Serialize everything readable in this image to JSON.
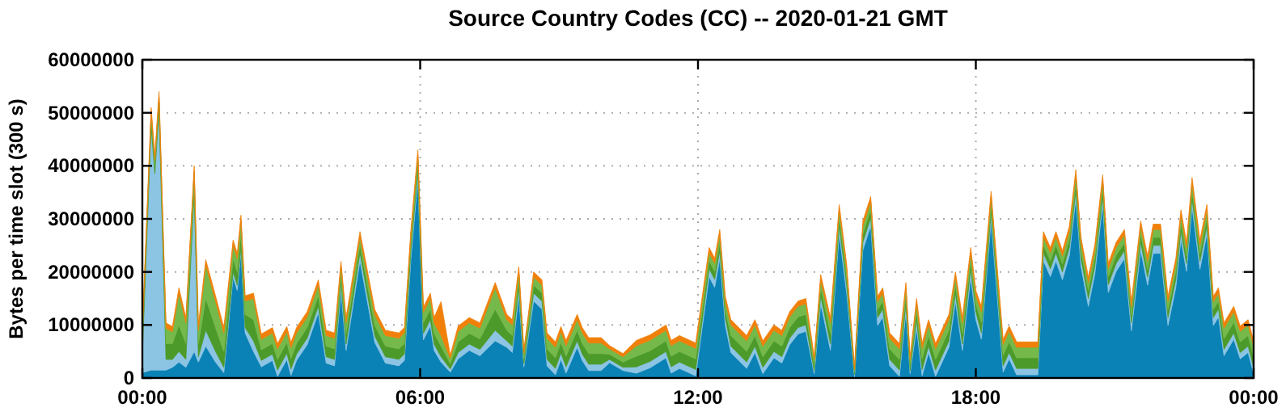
{
  "chart_data": {
    "type": "area",
    "stacked": true,
    "title": "Source Country Codes (CC) -- 2020-01-21 GMT",
    "ylabel": "Bytes per time slot (300 s)",
    "grid": true,
    "xlim": [
      0,
      24
    ],
    "xticks": [
      {
        "value": 0,
        "label": "00:00"
      },
      {
        "value": 6,
        "label": "06:00"
      },
      {
        "value": 12,
        "label": "12:00"
      },
      {
        "value": 18,
        "label": "18:00"
      },
      {
        "value": 24,
        "label": "00:00"
      }
    ],
    "ylim": [
      0,
      60000000
    ],
    "yticks": [
      0,
      10000000,
      20000000,
      30000000,
      40000000,
      50000000,
      60000000
    ],
    "x": [
      0,
      0.19,
      0.27,
      0.36,
      0.51,
      0.65,
      0.79,
      0.94,
      1.12,
      1.21,
      1.37,
      1.58,
      1.76,
      1.96,
      2.05,
      2.13,
      2.22,
      2.4,
      2.57,
      2.81,
      2.92,
      3.12,
      3.21,
      3.33,
      3.56,
      3.8,
      3.97,
      4.15,
      4.29,
      4.4,
      4.7,
      5.02,
      5.25,
      5.54,
      5.66,
      5.8,
      5.95,
      6.07,
      6.22,
      6.3,
      6.45,
      6.65,
      6.82,
      7.06,
      7.29,
      7.62,
      7.87,
      7.99,
      8.13,
      8.24,
      8.45,
      8.63,
      8.74,
      8.92,
      9.04,
      9.15,
      9.39,
      9.5,
      9.64,
      9.91,
      10.09,
      10.38,
      10.67,
      10.96,
      11.31,
      11.42,
      11.6,
      11.95,
      12.24,
      12.36,
      12.47,
      12.59,
      12.71,
      12.88,
      13.05,
      13.23,
      13.4,
      13.64,
      13.81,
      13.98,
      14.16,
      14.33,
      14.51,
      14.65,
      14.86,
      15.05,
      15.21,
      15.38,
      15.56,
      15.73,
      15.88,
      15.99,
      16.14,
      16.35,
      16.49,
      16.58,
      16.72,
      16.84,
      16.98,
      17.13,
      17.42,
      17.56,
      17.71,
      17.89,
      18.0,
      18.12,
      18.33,
      18.47,
      18.59,
      18.72,
      18.88,
      19.22,
      19.34,
      19.46,
      19.61,
      19.73,
      19.87,
      20.02,
      20.16,
      20.27,
      20.43,
      20.57,
      20.74,
      20.86,
      21.03,
      21.21,
      21.36,
      21.56,
      21.71,
      21.83,
      21.99,
      22.15,
      22.32,
      22.43,
      22.55,
      22.67,
      22.84,
      22.99,
      23.13,
      23.24,
      23.36,
      23.57,
      23.71,
      23.88,
      24
    ],
    "series": [
      {
        "color": "#0a82b5",
        "values": [
          1000000.0,
          1500000.0,
          1500000.0,
          1500000.0,
          1500000.0,
          2000000.0,
          3000000.0,
          2000000.0,
          5000000.0,
          3000000.0,
          6000000.0,
          3000000.0,
          1000000.0,
          19000000.0,
          16500000.0,
          23700000.0,
          8500000.0,
          5000000.0,
          2100000.0,
          3300000.0,
          300000.0,
          3500000.0,
          500000.0,
          3300000.0,
          6300000.0,
          12300000.0,
          2800000.0,
          2300000.0,
          16500000.0,
          5200000.0,
          22100000.0,
          6700000.0,
          2800000.0,
          2300000.0,
          3300000.0,
          22500000.0,
          37500000.0,
          7200000.0,
          9800000.0,
          5200000.0,
          3000000.0,
          1100000.0,
          3600000.0,
          5200000.0,
          4200000.0,
          7000000.0,
          5800000.0,
          4800000.0,
          15500000.0,
          2100000.0,
          14500000.0,
          13000000.0,
          2300000.0,
          600000.0,
          3500000.0,
          900000.0,
          5800000.0,
          3300000.0,
          1400000.0,
          1400000.0,
          2900000.0,
          1400000.0,
          900000.0,
          1900000.0,
          3800000.0,
          900000.0,
          1800000.0,
          400000.0,
          19100000.0,
          17100000.0,
          22500000.0,
          9900000.0,
          4800000.0,
          3300000.0,
          1800000.0,
          4800000.0,
          800000.0,
          3800000.0,
          2800000.0,
          6300000.0,
          8300000.0,
          8800000.0,
          800000.0,
          14000000.0,
          5200000.0,
          27200000.0,
          16000000.0,
          200000.0,
          24100000.0,
          28700000.0,
          9900000.0,
          11500000.0,
          2300000.0,
          300000.0,
          12500000.0,
          800000.0,
          9500000.0,
          400000.0,
          4800000.0,
          300000.0,
          5800000.0,
          14500000.0,
          5200000.0,
          19100000.0,
          11000000.0,
          7300000.0,
          29700000.0,
          14500000.0,
          1100000.0,
          3600000.0,
          600000.0,
          600000.0,
          600000.0,
          22100000.0,
          19100000.0,
          22100000.0,
          18500000.0,
          23100000.0,
          33800000.0,
          21100000.0,
          13500000.0,
          19600000.0,
          32800000.0,
          16100000.0,
          20100000.0,
          22500000.0,
          8900000.0,
          24100000.0,
          17500000.0,
          23500000.0,
          23500000.0,
          9900000.0,
          17100000.0,
          26200000.0,
          20100000.0,
          32300000.0,
          20500000.0,
          27200000.0,
          9900000.0,
          11500000.0,
          4200000.0,
          7300000.0,
          3600000.0,
          4800000.0,
          800000.0
        ]
      },
      {
        "color": "#8cc4e4",
        "values": [
          3400000.0,
          46000000.0,
          37000000.0,
          49000000.0,
          2000000.0,
          1500000.0,
          2000000.0,
          1500000.0,
          30000000.0,
          1000000.0,
          3000000.0,
          2000000.0,
          1000000.0,
          1000000.0,
          1000000.0,
          1000000.0,
          1000000.0,
          2000000.0,
          1200000.0,
          1200000.0,
          1200000.0,
          1200000.0,
          1200000.0,
          1200000.0,
          1200000.0,
          1200000.0,
          1200000.0,
          1200000.0,
          1500000.0,
          1200000.0,
          1500000.0,
          1200000.0,
          1200000.0,
          1200000.0,
          1200000.0,
          1500000.0,
          1500000.0,
          1200000.0,
          1200000.0,
          1200000.0,
          1000000.0,
          600000.0,
          1200000.0,
          1200000.0,
          1200000.0,
          2000000.0,
          1200000.0,
          1200000.0,
          1500000.0,
          600000.0,
          1500000.0,
          1500000.0,
          1200000.0,
          1200000.0,
          1200000.0,
          1200000.0,
          1200000.0,
          1200000.0,
          1200000.0,
          1200000.0,
          600000.0,
          600000.0,
          1200000.0,
          1200000.0,
          1200000.0,
          1200000.0,
          1200000.0,
          1200000.0,
          1500000.0,
          1500000.0,
          1500000.0,
          1500000.0,
          1200000.0,
          1200000.0,
          1200000.0,
          1200000.0,
          1200000.0,
          1200000.0,
          1200000.0,
          1200000.0,
          1200000.0,
          1200000.0,
          600000.0,
          1500000.0,
          1200000.0,
          1500000.0,
          1500000.0,
          400000.0,
          1500000.0,
          1500000.0,
          1500000.0,
          1500000.0,
          1200000.0,
          1200000.0,
          1500000.0,
          600000.0,
          1500000.0,
          1200000.0,
          1200000.0,
          1200000.0,
          1200000.0,
          1500000.0,
          1200000.0,
          1500000.0,
          1500000.0,
          1200000.0,
          1500000.0,
          1500000.0,
          1200000.0,
          1200000.0,
          1200000.0,
          1200000.0,
          1200000.0,
          1500000.0,
          1500000.0,
          1500000.0,
          1500000.0,
          1500000.0,
          1500000.0,
          1500000.0,
          1500000.0,
          1500000.0,
          1500000.0,
          1500000.0,
          1500000.0,
          1500000.0,
          1500000.0,
          1500000.0,
          1500000.0,
          1500000.0,
          1500000.0,
          1500000.0,
          1500000.0,
          1500000.0,
          1500000.0,
          1500000.0,
          1500000.0,
          1500000.0,
          1500000.0,
          1500000.0,
          1200000.0,
          1200000.0,
          1200000.0,
          1200000.0,
          1200000.0
        ]
      },
      {
        "color": "#4c9a2a",
        "values": [
          2000000.0,
          1500000.0,
          1500000.0,
          1500000.0,
          3000000.0,
          3000000.0,
          5000000.0,
          3000000.0,
          2000000.0,
          2500000.0,
          6000000.0,
          4500000.0,
          3000000.0,
          2500000.0,
          2500000.0,
          2500000.0,
          2500000.0,
          4000000.0,
          2000000.0,
          2000000.0,
          2000000.0,
          2000000.0,
          2000000.0,
          2000000.0,
          2000000.0,
          2000000.0,
          2000000.0,
          2000000.0,
          1500000.0,
          2000000.0,
          1500000.0,
          2000000.0,
          2000000.0,
          2000000.0,
          2000000.0,
          1500000.0,
          1500000.0,
          2000000.0,
          2000000.0,
          2000000.0,
          2000000.0,
          1000000.0,
          2000000.0,
          2000000.0,
          2000000.0,
          4000000.0,
          2000000.0,
          2000000.0,
          1500000.0,
          1000000.0,
          1500000.0,
          1500000.0,
          2000000.0,
          2000000.0,
          2000000.0,
          2000000.0,
          2000000.0,
          2000000.0,
          2000000.0,
          2000000.0,
          1000000.0,
          1000000.0,
          2000000.0,
          2000000.0,
          2000000.0,
          2000000.0,
          2000000.0,
          2000000.0,
          1500000.0,
          1500000.0,
          1500000.0,
          1500000.0,
          2000000.0,
          2000000.0,
          2000000.0,
          2000000.0,
          2000000.0,
          2000000.0,
          2000000.0,
          2000000.0,
          2000000.0,
          2000000.0,
          1000000.0,
          1500000.0,
          2000000.0,
          1500000.0,
          1500000.0,
          500000.0,
          1500000.0,
          1500000.0,
          1500000.0,
          1500000.0,
          2000000.0,
          2000000.0,
          1500000.0,
          1000000.0,
          1500000.0,
          2000000.0,
          2000000.0,
          2000000.0,
          2000000.0,
          1500000.0,
          2000000.0,
          1500000.0,
          1500000.0,
          2000000.0,
          1500000.0,
          1500000.0,
          2000000.0,
          2000000.0,
          2000000.0,
          2000000.0,
          2000000.0,
          1500000.0,
          1500000.0,
          1500000.0,
          1500000.0,
          1500000.0,
          1500000.0,
          1500000.0,
          1500000.0,
          1500000.0,
          1500000.0,
          1500000.0,
          1500000.0,
          1500000.0,
          1500000.0,
          1500000.0,
          1500000.0,
          1500000.0,
          1500000.0,
          1500000.0,
          1500000.0,
          1500000.0,
          1500000.0,
          1500000.0,
          1500000.0,
          1500000.0,
          1500000.0,
          1500000.0,
          2000000.0,
          2000000.0,
          2000000.0,
          2000000.0,
          2000000.0
        ]
      },
      {
        "color": "#74b94a",
        "values": [
          2000000.0,
          1000000.0,
          1000000.0,
          1000000.0,
          2900000.0,
          2200000.0,
          6000000.0,
          3900000.0,
          2000000.0,
          2500000.0,
          6300000.0,
          5000000.0,
          3500000.0,
          2500000.0,
          2500000.0,
          2500000.0,
          2500000.0,
          4000000.0,
          2000000.0,
          2000000.0,
          2000000.0,
          2000000.0,
          2000000.0,
          2000000.0,
          2000000.0,
          2000000.0,
          2000000.0,
          2000000.0,
          1500000.0,
          2000000.0,
          1500000.0,
          2000000.0,
          2000000.0,
          2000000.0,
          2000000.0,
          1500000.0,
          1500000.0,
          2000000.0,
          2000000.0,
          2000000.0,
          2000000.0,
          1000000.0,
          2000000.0,
          2000000.0,
          2000000.0,
          4000000.0,
          2000000.0,
          2000000.0,
          1500000.0,
          1000000.0,
          1500000.0,
          1500000.0,
          2000000.0,
          2000000.0,
          2000000.0,
          2000000.0,
          2000000.0,
          2000000.0,
          2000000.0,
          2000000.0,
          1000000.0,
          1000000.0,
          2000000.0,
          2000000.0,
          2000000.0,
          2000000.0,
          2000000.0,
          2000000.0,
          1500000.0,
          1500000.0,
          1500000.0,
          1500000.0,
          2000000.0,
          2000000.0,
          2000000.0,
          2000000.0,
          2000000.0,
          2000000.0,
          2000000.0,
          2000000.0,
          2000000.0,
          2000000.0,
          1000000.0,
          1500000.0,
          2000000.0,
          1500000.0,
          1500000.0,
          500000.0,
          1500000.0,
          1500000.0,
          1500000.0,
          1500000.0,
          2000000.0,
          2000000.0,
          1500000.0,
          1000000.0,
          1500000.0,
          2000000.0,
          2000000.0,
          2000000.0,
          2000000.0,
          1500000.0,
          2000000.0,
          1500000.0,
          1500000.0,
          2000000.0,
          1500000.0,
          1500000.0,
          2000000.0,
          2000000.0,
          2000000.0,
          2000000.0,
          2000000.0,
          1500000.0,
          1500000.0,
          1500000.0,
          1500000.0,
          1500000.0,
          1500000.0,
          1500000.0,
          1500000.0,
          1500000.0,
          1500000.0,
          1500000.0,
          1500000.0,
          1500000.0,
          1500000.0,
          1500000.0,
          1500000.0,
          1500000.0,
          1500000.0,
          1500000.0,
          1500000.0,
          1500000.0,
          1500000.0,
          1500000.0,
          1500000.0,
          1500000.0,
          1500000.0,
          1500000.0,
          2000000.0,
          2000000.0,
          2000000.0,
          2000000.0,
          2000000.0
        ]
      },
      {
        "color": "#f0800a",
        "values": [
          1000000.0,
          1000000.0,
          1000000.0,
          1000000.0,
          1000000.0,
          1000000.0,
          1000000.0,
          1000000.0,
          1000000.0,
          1000000.0,
          1000000.0,
          1000000.0,
          1000000.0,
          1000000.0,
          1000000.0,
          1000000.0,
          1000000.0,
          1000000.0,
          1000000.0,
          1000000.0,
          1000000.0,
          1000000.0,
          1000000.0,
          1000000.0,
          1000000.0,
          1000000.0,
          1000000.0,
          1000000.0,
          1000000.0,
          1000000.0,
          1000000.0,
          1000000.0,
          1000000.0,
          1000000.0,
          1000000.0,
          1000000.0,
          1000000.0,
          1000000.0,
          1000000.0,
          1000000.0,
          6400000.0,
          600000.0,
          1000000.0,
          1000000.0,
          1000000.0,
          1000000.0,
          1000000.0,
          1000000.0,
          1000000.0,
          600000.0,
          1000000.0,
          1000000.0,
          1000000.0,
          1000000.0,
          1000000.0,
          1000000.0,
          1000000.0,
          1000000.0,
          1000000.0,
          1000000.0,
          600000.0,
          600000.0,
          1000000.0,
          1000000.0,
          1000000.0,
          1000000.0,
          1000000.0,
          1000000.0,
          1000000.0,
          1000000.0,
          1000000.0,
          1000000.0,
          1000000.0,
          1000000.0,
          1000000.0,
          1000000.0,
          1000000.0,
          1000000.0,
          1000000.0,
          1000000.0,
          1000000.0,
          1000000.0,
          600000.0,
          1000000.0,
          1000000.0,
          1000000.0,
          1000000.0,
          400000.0,
          1000000.0,
          1000000.0,
          1000000.0,
          1000000.0,
          1000000.0,
          1000000.0,
          1000000.0,
          600000.0,
          1000000.0,
          1000000.0,
          1000000.0,
          1000000.0,
          1000000.0,
          1000000.0,
          1000000.0,
          1000000.0,
          1000000.0,
          1000000.0,
          1000000.0,
          1000000.0,
          1000000.0,
          1000000.0,
          1000000.0,
          1000000.0,
          1000000.0,
          1000000.0,
          1000000.0,
          1000000.0,
          1000000.0,
          1000000.0,
          1000000.0,
          1000000.0,
          1000000.0,
          1000000.0,
          1000000.0,
          1000000.0,
          1000000.0,
          1000000.0,
          1000000.0,
          1000000.0,
          1000000.0,
          1000000.0,
          1000000.0,
          1000000.0,
          1000000.0,
          1000000.0,
          1000000.0,
          1000000.0,
          1000000.0,
          1000000.0,
          1000000.0,
          1000000.0,
          1000000.0,
          1000000.0,
          1000000.0,
          1000000.0,
          1000000.0
        ]
      }
    ]
  }
}
